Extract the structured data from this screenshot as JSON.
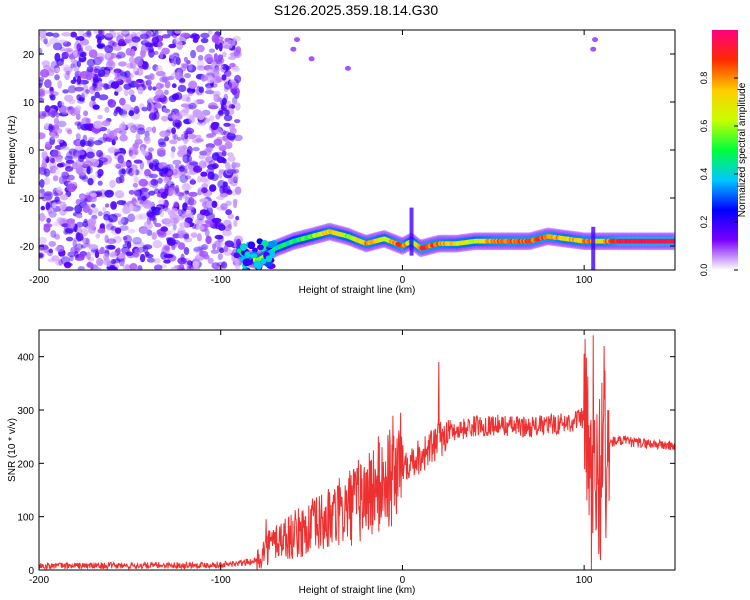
{
  "title": "S126.2025.359.18.14.G30",
  "chart_data": [
    {
      "type": "heatmap",
      "xlabel": "Height of straight line (km)",
      "ylabel": "Frequency (Hz)",
      "xlim": [
        -200,
        150
      ],
      "ylim": [
        -25,
        25
      ],
      "xticks": [
        -200,
        -100,
        0,
        100
      ],
      "yticks": [
        20,
        10,
        0,
        -10,
        -20
      ],
      "colorbar": {
        "label": "Normalized spectral amplitude",
        "range": [
          0,
          1
        ],
        "ticks": [
          "0.0",
          "0.2",
          "0.4",
          "0.6",
          "0.8"
        ],
        "colors": [
          "#ffffff",
          "#7a00ff",
          "#0000ff",
          "#00c8ff",
          "#00ff3c",
          "#c8ff00",
          "#ffcc00",
          "#ff2a00",
          "#ff0080"
        ]
      },
      "noise_region_x": [
        -200,
        -90
      ],
      "ridge": {
        "x": [
          -90,
          -85,
          -80,
          -75,
          -70,
          -60,
          -50,
          -40,
          -30,
          -20,
          -10,
          0,
          5,
          10,
          20,
          30,
          40,
          50,
          60,
          70,
          80,
          90,
          100,
          110,
          120,
          130,
          140,
          150
        ],
        "freq": [
          -21,
          -22.5,
          -23,
          -22,
          -20.5,
          -19,
          -18,
          -17,
          -18,
          -19.5,
          -18.5,
          -20,
          -19,
          -20.5,
          -19.5,
          -19.5,
          -19,
          -19,
          -19,
          -19,
          -18,
          -18.5,
          -19,
          -19,
          -19,
          -19,
          -19,
          -19
        ],
        "amplitude": [
          0.5,
          0.55,
          0.6,
          0.6,
          0.45,
          0.45,
          0.55,
          0.75,
          0.6,
          0.8,
          0.65,
          0.9,
          0.5,
          0.9,
          0.8,
          0.7,
          0.65,
          0.8,
          0.85,
          0.85,
          0.85,
          0.7,
          0.8,
          0.75,
          0.95,
          0.95,
          0.95,
          0.95
        ]
      }
    },
    {
      "type": "line",
      "xlabel": "Height of straight line (km)",
      "ylabel": "SNR (10 * v/v)",
      "xlim": [
        -200,
        150
      ],
      "ylim": [
        0,
        450
      ],
      "xticks": [
        -200,
        -100,
        0,
        100
      ],
      "yticks": [
        0,
        100,
        200,
        300,
        400
      ],
      "series": [
        {
          "name": "SNR",
          "color": "#ee3030",
          "x": [
            -200,
            -150,
            -100,
            -90,
            -80,
            -75,
            -70,
            -60,
            -50,
            -40,
            -30,
            -20,
            -10,
            0,
            10,
            20,
            25,
            30,
            40,
            50,
            60,
            70,
            80,
            90,
            100,
            105,
            110,
            115,
            120,
            130,
            140,
            150
          ],
          "y": [
            8,
            8,
            10,
            12,
            18,
            40,
            55,
            65,
            80,
            95,
            115,
            140,
            165,
            200,
            215,
            240,
            262,
            262,
            270,
            272,
            270,
            268,
            272,
            276,
            285,
            120,
            210,
            240,
            242,
            238,
            236,
            232
          ],
          "spikes": [
            [
              -75,
              95
            ],
            [
              20,
              390
            ],
            [
              105,
              440
            ],
            [
              108,
              30
            ],
            [
              111,
              420
            ],
            [
              112,
              60
            ]
          ]
        }
      ]
    }
  ]
}
